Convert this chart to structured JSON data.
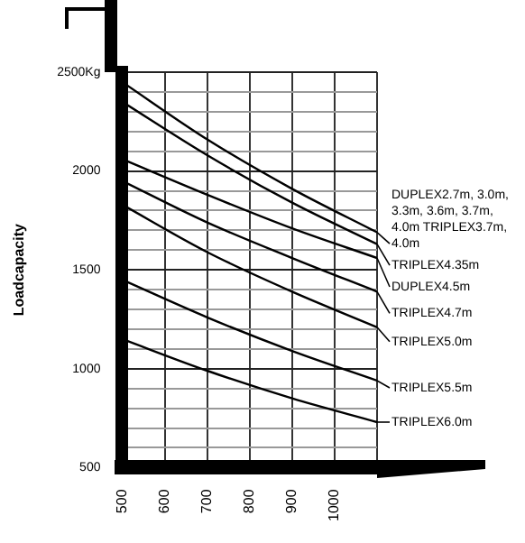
{
  "chart_data": {
    "type": "line",
    "ylabel": "Loadcapacity",
    "x": [
      500,
      700,
      900,
      1100
    ],
    "xlim": [
      500,
      1100
    ],
    "xticks": [
      500,
      600,
      700,
      800,
      900,
      1000,
      {
        "value": 1100,
        "label": null
      }
    ],
    "ylim": [
      500,
      2500
    ],
    "yticks": [
      {
        "value": 500,
        "label": "500"
      },
      {
        "value": 600,
        "label": null
      },
      {
        "value": 700,
        "label": null
      },
      {
        "value": 800,
        "label": null
      },
      {
        "value": 900,
        "label": null
      },
      {
        "value": 1000,
        "label": "1000"
      },
      {
        "value": 1100,
        "label": null
      },
      {
        "value": 1200,
        "label": null
      },
      {
        "value": 1300,
        "label": null
      },
      {
        "value": 1400,
        "label": null
      },
      {
        "value": 1500,
        "label": "1500"
      },
      {
        "value": 1600,
        "label": null
      },
      {
        "value": 1700,
        "label": null
      },
      {
        "value": 1800,
        "label": null
      },
      {
        "value": 1900,
        "label": null
      },
      {
        "value": 2000,
        "label": "2000"
      },
      {
        "value": 2100,
        "label": null
      },
      {
        "value": 2200,
        "label": null
      },
      {
        "value": 2300,
        "label": null
      },
      {
        "value": 2400,
        "label": null
      },
      {
        "value": 2500,
        "label": "2500Kg"
      }
    ],
    "grid": true,
    "legend": "right",
    "marker": "none",
    "line_style": "solid",
    "series": [
      {
        "name": "DUPLEX2.7m, 3.0m, 3.3m, 3.6m, 3.7m, 4.0m TRIPLEX3.7m, 4.0m",
        "color": "#000000",
        "values": [
          2450,
          2160,
          1910,
          1690
        ]
      },
      {
        "name": "TRIPLEX4.35m",
        "color": "#000000",
        "values": [
          2350,
          2080,
          1840,
          1630
        ]
      },
      {
        "name": "DUPLEX4.5m",
        "color": "#000000",
        "values": [
          2060,
          1880,
          1710,
          1560
        ]
      },
      {
        "name": "TRIPLEX4.7m",
        "color": "#000000",
        "values": [
          1950,
          1740,
          1560,
          1390
        ]
      },
      {
        "name": "TRIPLEX5.0m",
        "color": "#000000",
        "values": [
          1830,
          1590,
          1390,
          1210
        ]
      },
      {
        "name": "TRIPLEX5.5m",
        "color": "#000000",
        "values": [
          1450,
          1260,
          1090,
          940
        ]
      },
      {
        "name": "TRIPLEX6.0m",
        "color": "#000000",
        "values": [
          1150,
          990,
          850,
          730
        ]
      }
    ]
  }
}
